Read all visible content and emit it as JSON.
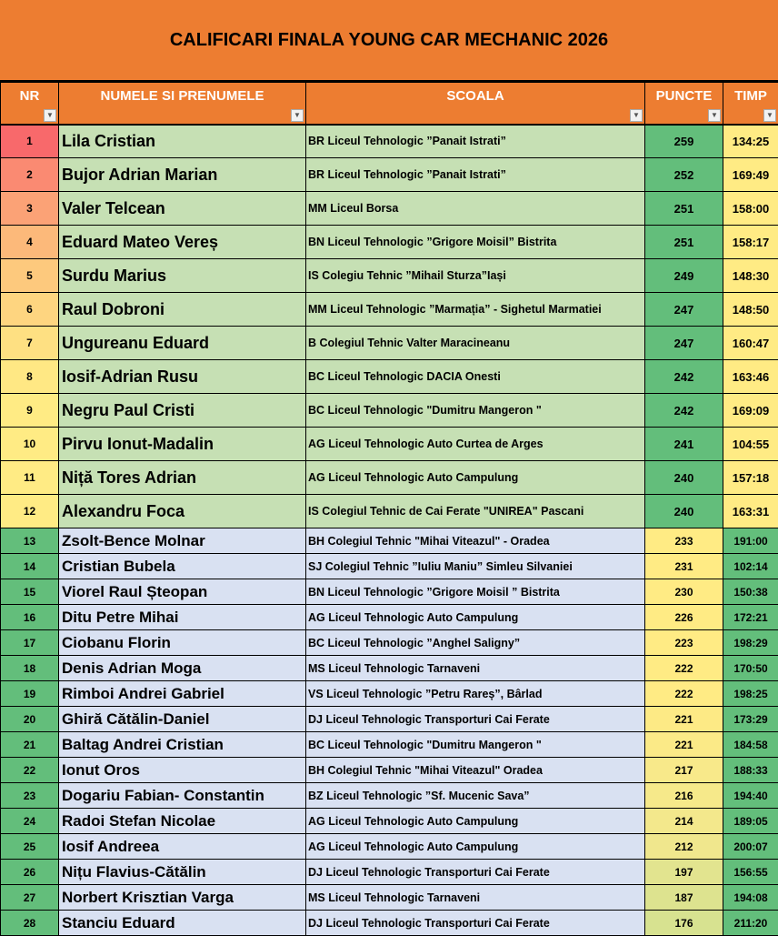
{
  "title": "CALIFICARI FINALA YOUNG CAR MECHANIC 2026",
  "headers": {
    "nr": "NR",
    "name": "NUMELE SI PRENUMELE",
    "school": "SCOALA",
    "points": "PUNCTE",
    "time": "TIMP"
  },
  "colors": {
    "header": "#ed7d31",
    "top_name_bg": "#c6e0b4",
    "bottom_name_bg": "#d9e1f2",
    "green": "#63be7b",
    "yellow": "#ffeb84"
  },
  "rows": [
    {
      "nr": "1",
      "name": "Lila Cristian",
      "school": "BR Liceul Tehnologic ”Panait Istrati”",
      "points": "259",
      "time": "134:25",
      "nr_color": "#f8696b",
      "pts_color": "#63be7b",
      "time_color": "#ffeb84"
    },
    {
      "nr": "2",
      "name": "Bujor Adrian Marian",
      "school": "BR Liceul Tehnologic ”Panait Istrati”",
      "points": "252",
      "time": "169:49",
      "nr_color": "#fa8a72",
      "pts_color": "#63be7b",
      "time_color": "#ffeb84"
    },
    {
      "nr": "3",
      "name": "Valer Telcean",
      "school": "MM Liceul Borsa",
      "points": "251",
      "time": "158:00",
      "nr_color": "#fba276",
      "pts_color": "#63be7b",
      "time_color": "#ffeb84"
    },
    {
      "nr": "4",
      "name": "Eduard Mateo Vereș",
      "school": "BN Liceul Tehnologic ”Grigore Moisil” Bistrita",
      "points": "251",
      "time": "158:17",
      "nr_color": "#fcb97a",
      "pts_color": "#63be7b",
      "time_color": "#ffeb84"
    },
    {
      "nr": "5",
      "name": "Surdu Marius",
      "school": "IS Colegiu Tehnic ”Mihail Sturza”Iași",
      "points": "249",
      "time": "148:30",
      "nr_color": "#fdc97d",
      "pts_color": "#63be7b",
      "time_color": "#ffeb84"
    },
    {
      "nr": "6",
      "name": "Raul Dobroni",
      "school": "MM Liceul Tehnologic ”Marmația” - Sighetul Marmatiei",
      "points": "247",
      "time": "148:50",
      "nr_color": "#fed580",
      "pts_color": "#63be7b",
      "time_color": "#ffeb84"
    },
    {
      "nr": "7",
      "name": "Ungureanu Eduard",
      "school": "B Colegiul Tehnic Valter Maracineanu",
      "points": "247",
      "time": "160:47",
      "nr_color": "#fee082",
      "pts_color": "#63be7b",
      "time_color": "#ffeb84"
    },
    {
      "nr": "8",
      "name": "Iosif-Adrian Rusu",
      "school": "BC Liceul Tehnologic DACIA Onesti",
      "points": "242",
      "time": "163:46",
      "nr_color": "#ffe884",
      "pts_color": "#63be7b",
      "time_color": "#ffeb84"
    },
    {
      "nr": "9",
      "name": "Negru Paul Cristi",
      "school": "BC Liceul Tehnologic \"Dumitru Mangeron \"",
      "points": "242",
      "time": "169:09",
      "nr_color": "#ffeb84",
      "pts_color": "#63be7b",
      "time_color": "#ffeb84"
    },
    {
      "nr": "10",
      "name": "Pirvu Ionut-Madalin",
      "school": "AG Liceul Tehnologic Auto Curtea de Arges",
      "points": "241",
      "time": "104:55",
      "nr_color": "#ffeb84",
      "pts_color": "#63be7b",
      "time_color": "#ffeb84"
    },
    {
      "nr": "11",
      "name": "Niță Tores Adrian",
      "school": "AG Liceul Tehnologic Auto Campulung",
      "points": "240",
      "time": "157:18",
      "nr_color": "#ffeb84",
      "pts_color": "#63be7b",
      "time_color": "#ffeb84"
    },
    {
      "nr": "12",
      "name": "Alexandru Foca",
      "school": "IS Colegiul Tehnic de Cai Ferate \"UNIREA\" Pascani",
      "points": "240",
      "time": "163:31",
      "nr_color": "#ffeb84",
      "pts_color": "#63be7b",
      "time_color": "#ffeb84"
    },
    {
      "nr": "13",
      "name": "Zsolt-Bence Molnar",
      "school": "BH Colegiul Tehnic \"Mihai Viteazul\" - Oradea",
      "points": "233",
      "time": "191:00",
      "nr_color": "#63be7b",
      "pts_color": "#ffeb84",
      "time_color": "#63be7b"
    },
    {
      "nr": "14",
      "name": "Cristian Bubela",
      "school": "SJ Colegiul Tehnic ”Iuliu Maniu” Simleu Silvaniei",
      "points": "231",
      "time": "102:14",
      "nr_color": "#63be7b",
      "pts_color": "#ffeb84",
      "time_color": "#63be7b"
    },
    {
      "nr": "15",
      "name": "Viorel Raul Șteopan",
      "school": "BN Liceul Tehnologic ”Grigore Moisil ” Bistrita",
      "points": "230",
      "time": "150:38",
      "nr_color": "#63be7b",
      "pts_color": "#ffeb84",
      "time_color": "#63be7b"
    },
    {
      "nr": "16",
      "name": "Ditu Petre Mihai",
      "school": "AG Liceul Tehnologic Auto Campulung",
      "points": "226",
      "time": "172:21",
      "nr_color": "#63be7b",
      "pts_color": "#ffeb84",
      "time_color": "#63be7b"
    },
    {
      "nr": "17",
      "name": "Ciobanu Florin",
      "school": "BC Liceul Tehnologic ”Anghel Saligny”",
      "points": "223",
      "time": "198:29",
      "nr_color": "#63be7b",
      "pts_color": "#ffeb84",
      "time_color": "#63be7b"
    },
    {
      "nr": "18",
      "name": "Denis Adrian Moga",
      "school": "MS Liceul Tehnologic Tarnaveni",
      "points": "222",
      "time": "170:50",
      "nr_color": "#63be7b",
      "pts_color": "#ffeb84",
      "time_color": "#63be7b"
    },
    {
      "nr": "19",
      "name": "Rimboi Andrei Gabriel",
      "school": "VS Liceul Tehnologic ”Petru Rareș”, Bârlad",
      "points": "222",
      "time": "198:25",
      "nr_color": "#63be7b",
      "pts_color": "#ffeb84",
      "time_color": "#63be7b"
    },
    {
      "nr": "20",
      "name": "Ghiră Cătălin-Daniel",
      "school": "DJ Liceul Tehnologic Transporturi Cai Ferate",
      "points": "221",
      "time": "173:29",
      "nr_color": "#63be7b",
      "pts_color": "#fdea85",
      "time_color": "#63be7b"
    },
    {
      "nr": "21",
      "name": "Baltag Andrei Cristian",
      "school": "BC Liceul Tehnologic \"Dumitru Mangeron \"",
      "points": "221",
      "time": "184:58",
      "nr_color": "#63be7b",
      "pts_color": "#fbea87",
      "time_color": "#63be7b"
    },
    {
      "nr": "22",
      "name": "Ionut Oros",
      "school": "BH Colegiul Tehnic \"Mihai Viteazul\" Oradea",
      "points": "217",
      "time": "188:33",
      "nr_color": "#63be7b",
      "pts_color": "#f8e98a",
      "time_color": "#63be7b"
    },
    {
      "nr": "23",
      "name": "Dogariu Fabian- Constantin",
      "school": "BZ Liceul Tehnologic ”Sf. Mucenic Sava”",
      "points": "216",
      "time": "194:40",
      "nr_color": "#63be7b",
      "pts_color": "#f6e98a",
      "time_color": "#63be7b"
    },
    {
      "nr": "24",
      "name": "Radoi Stefan Nicolae",
      "school": "AG Liceul Tehnologic Auto Campulung",
      "points": "214",
      "time": "189:05",
      "nr_color": "#63be7b",
      "pts_color": "#f3e88c",
      "time_color": "#63be7b"
    },
    {
      "nr": "25",
      "name": "Iosif Andreea",
      "school": "AG Liceul Tehnologic Auto Campulung",
      "points": "212",
      "time": "200:07",
      "nr_color": "#63be7b",
      "pts_color": "#f0e78d",
      "time_color": "#63be7b"
    },
    {
      "nr": "26",
      "name": "Nițu Flavius-Cătălin",
      "school": "DJ Liceul Tehnologic Transporturi Cai Ferate",
      "points": "197",
      "time": "156:55",
      "nr_color": "#63be7b",
      "pts_color": "#e2e48f",
      "time_color": "#63be7b"
    },
    {
      "nr": "27",
      "name": "Norbert Krisztian Varga",
      "school": "MS Liceul Tehnologic Tarnaveni",
      "points": "187",
      "time": "194:08",
      "nr_color": "#63be7b",
      "pts_color": "#dde38f",
      "time_color": "#63be7b"
    },
    {
      "nr": "28",
      "name": "Stanciu Eduard",
      "school": "DJ Liceul Tehnologic Transporturi Cai Ferate",
      "points": "176",
      "time": "211:20",
      "nr_color": "#63be7b",
      "pts_color": "#d7e290",
      "time_color": "#63be7b"
    }
  ]
}
